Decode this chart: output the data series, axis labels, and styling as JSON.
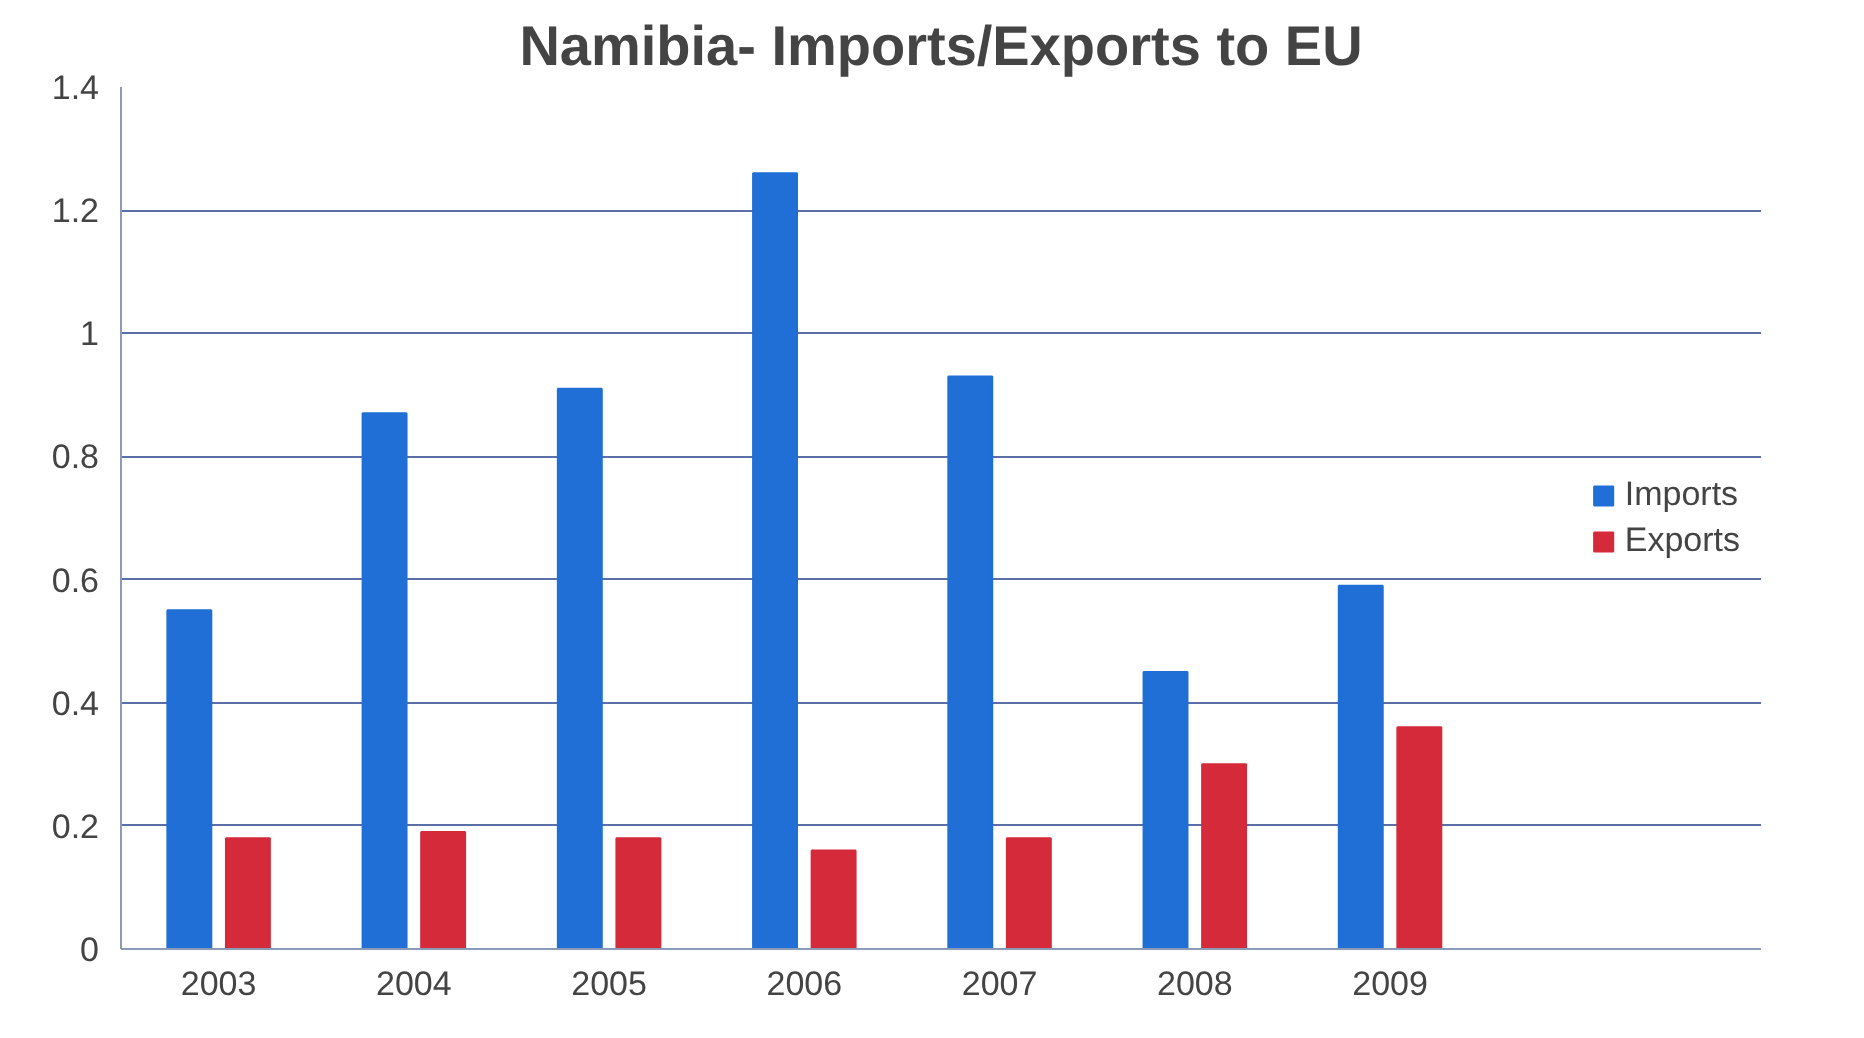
{
  "chart_data": {
    "type": "bar",
    "title": "Namibia- Imports/Exports to EU",
    "categories": [
      "2003",
      "2004",
      "2005",
      "2006",
      "2007",
      "2008",
      "2009"
    ],
    "series": [
      {
        "name": "Imports",
        "color": "#1f6fd6",
        "values": [
          0.55,
          0.87,
          0.91,
          1.26,
          0.93,
          0.45,
          0.59
        ]
      },
      {
        "name": "Exports",
        "color": "#d42a3a",
        "values": [
          0.18,
          0.19,
          0.18,
          0.16,
          0.18,
          0.3,
          0.36
        ]
      }
    ],
    "ylim": [
      0,
      1.4
    ],
    "yticks": [
      0,
      {
        "value": 0.2,
        "label": "0.2"
      },
      {
        "value": 0.4,
        "label": "0.4"
      },
      {
        "value": 0.6,
        "label": "0.6"
      },
      {
        "value": 0.8,
        "label": "0.8"
      },
      1,
      {
        "value": 1.2,
        "label": "1.2"
      },
      {
        "value": 1.4,
        "label": "1.4"
      }
    ],
    "grid": "y",
    "legend": "right"
  }
}
